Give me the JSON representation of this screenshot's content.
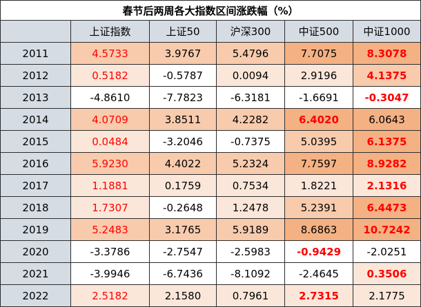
{
  "chart_data": {
    "type": "table",
    "title": "春节后两周各大指数区间涨跌幅（%）",
    "columns": [
      "",
      "上证指数",
      "上证50",
      "沪深300",
      "中证500",
      "中证1000"
    ],
    "rows": [
      {
        "year": "2011",
        "values": [
          "4.5733",
          "3.9767",
          "5.4796",
          "7.7075",
          "8.3078"
        ]
      },
      {
        "year": "2012",
        "values": [
          "0.5182",
          "-0.5787",
          "0.0094",
          "2.9196",
          "4.1375"
        ]
      },
      {
        "year": "2013",
        "values": [
          "-4.8610",
          "-7.7823",
          "-6.3181",
          "-1.6691",
          "-0.3047"
        ]
      },
      {
        "year": "2014",
        "values": [
          "4.0709",
          "3.8511",
          "4.2282",
          "6.4020",
          "6.0643"
        ]
      },
      {
        "year": "2015",
        "values": [
          "0.0484",
          "-3.2046",
          "-0.7375",
          "5.0395",
          "6.1375"
        ]
      },
      {
        "year": "2016",
        "values": [
          "5.9230",
          "4.4022",
          "5.2324",
          "7.7597",
          "8.9282"
        ]
      },
      {
        "year": "2017",
        "values": [
          "1.1881",
          "0.1759",
          "0.7534",
          "1.8221",
          "2.1316"
        ]
      },
      {
        "year": "2018",
        "values": [
          "1.7307",
          "-0.2648",
          "1.2478",
          "5.2391",
          "6.4473"
        ]
      },
      {
        "year": "2019",
        "values": [
          "5.2483",
          "3.1765",
          "5.9189",
          "8.6863",
          "10.7242"
        ]
      },
      {
        "year": "2020",
        "values": [
          "-3.3786",
          "-2.7547",
          "-2.5983",
          "-0.9429",
          "-2.0251"
        ]
      },
      {
        "year": "2021",
        "values": [
          "-3.9946",
          "-6.7436",
          "-8.1092",
          "-2.4645",
          "0.3506"
        ]
      },
      {
        "year": "2022",
        "values": [
          "2.5182",
          "2.1580",
          "0.7961",
          "2.7315",
          "2.1775"
        ]
      }
    ],
    "highlight_max_per_row": [
      4,
      4,
      4,
      3,
      4,
      4,
      4,
      4,
      4,
      3,
      4,
      3
    ],
    "colors": {
      "header_bg": "#d6dce4",
      "year_bg": "#d6dce4",
      "heat_light": "#fbe7d9",
      "heat_mid": "#f8cbad",
      "heat_strong": "#f4b183",
      "highlight_text": "#ff0000"
    }
  }
}
